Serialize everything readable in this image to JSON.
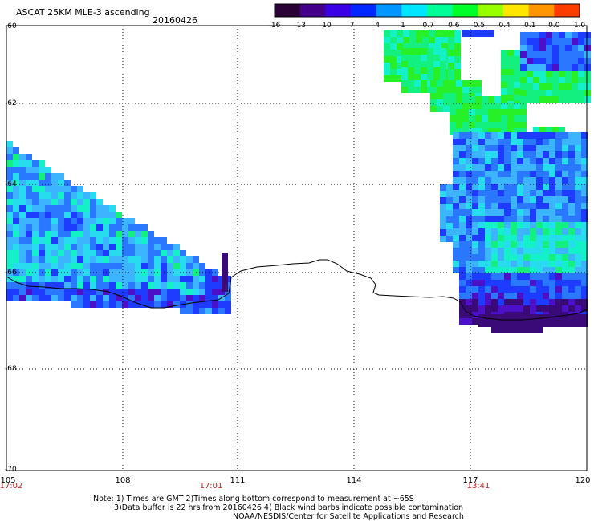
{
  "header": {
    "product": "ASCAT 25KM MLE-3 ascending",
    "date": "20160426"
  },
  "colorbar": {
    "tick_labels": [
      "-16",
      "-13",
      "-10",
      "-7",
      "-4",
      "-1",
      "-0.7",
      "-0.6",
      "-0.5",
      "-0.4",
      "-0.1",
      "0.0",
      "1.0"
    ],
    "colors": [
      "#2a0036",
      "#45008a",
      "#3c00e6",
      "#0028ff",
      "#0096ff",
      "#00e6ff",
      "#00ff96",
      "#00ff28",
      "#96ff00",
      "#ffe600",
      "#ff9600",
      "#ff3c00"
    ]
  },
  "axes": {
    "lat_labels": [
      "-60",
      "-62",
      "-64",
      "-66",
      "-68",
      "-70"
    ],
    "lon_labels": [
      "105",
      "108",
      "111",
      "114",
      "117",
      "120"
    ],
    "time_labels": [
      "17:02",
      "17:01",
      "13:41"
    ]
  },
  "footer": {
    "note1": "Note: 1) Times are GMT 2)Times along bottom correspond to measurement at ~65S",
    "note2": "3)Data buffer is 22 hrs from 20160426 4) Black wind barbs indicate possible contamination",
    "credit": "NOAA/NESDIS/Center for Satellite Applications and Research"
  }
}
